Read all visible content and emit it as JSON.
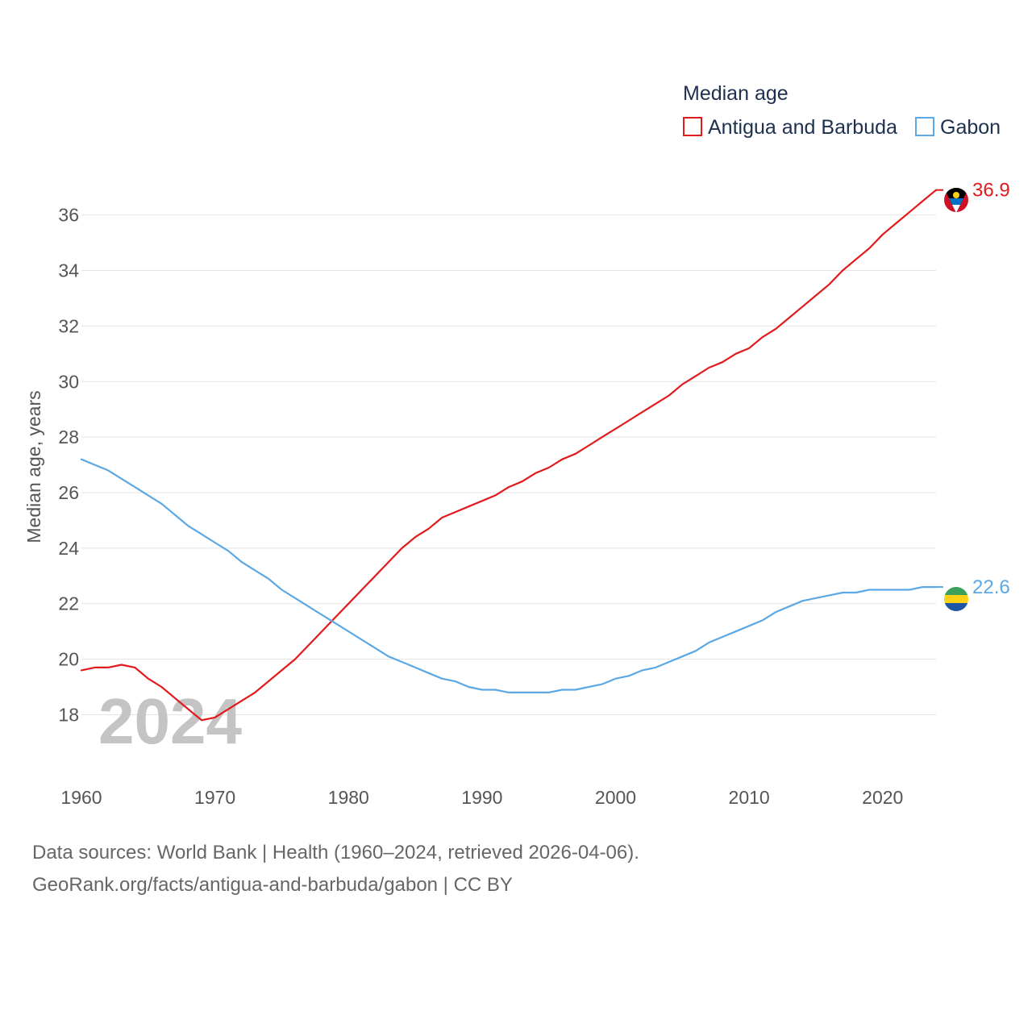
{
  "chart_data": {
    "type": "line",
    "title": "Median age",
    "ylabel": "Median age, years",
    "xlabel": "",
    "xlim": [
      1960,
      2024
    ],
    "ylim": [
      16.3,
      37.5
    ],
    "grid": true,
    "legend_position": "top-right",
    "year_watermark": "2024",
    "x_ticks": [
      1960,
      1970,
      1980,
      1990,
      2000,
      2010,
      2020
    ],
    "y_ticks": [
      18,
      20,
      22,
      24,
      26,
      28,
      30,
      32,
      34,
      36
    ],
    "x": [
      1960,
      1961,
      1962,
      1963,
      1964,
      1965,
      1966,
      1967,
      1968,
      1969,
      1970,
      1971,
      1972,
      1973,
      1974,
      1975,
      1976,
      1977,
      1978,
      1979,
      1980,
      1981,
      1982,
      1983,
      1984,
      1985,
      1986,
      1987,
      1988,
      1989,
      1990,
      1991,
      1992,
      1993,
      1994,
      1995,
      1996,
      1997,
      1998,
      1999,
      2000,
      2001,
      2002,
      2003,
      2004,
      2005,
      2006,
      2007,
      2008,
      2009,
      2010,
      2011,
      2012,
      2013,
      2014,
      2015,
      2016,
      2017,
      2018,
      2019,
      2020,
      2021,
      2022,
      2023,
      2024
    ],
    "series": [
      {
        "name": "Antigua and Barbuda",
        "color": "#e31a1c",
        "end_label": "36.9",
        "flag": "antigua-and-barbuda",
        "values": [
          19.6,
          19.7,
          19.7,
          19.8,
          19.7,
          19.3,
          19.0,
          18.6,
          18.2,
          17.8,
          17.9,
          18.2,
          18.5,
          18.8,
          19.2,
          19.6,
          20.0,
          20.5,
          21.0,
          21.5,
          22.0,
          22.5,
          23.0,
          23.5,
          24.0,
          24.4,
          24.7,
          25.1,
          25.3,
          25.5,
          25.7,
          25.9,
          26.2,
          26.4,
          26.7,
          26.9,
          27.2,
          27.4,
          27.7,
          28.0,
          28.3,
          28.6,
          28.9,
          29.2,
          29.5,
          29.9,
          30.2,
          30.5,
          30.7,
          31.0,
          31.2,
          31.6,
          31.9,
          32.3,
          32.7,
          33.1,
          33.5,
          34.0,
          34.4,
          34.8,
          35.3,
          35.7,
          36.1,
          36.5,
          36.9
        ]
      },
      {
        "name": "Gabon",
        "color": "#5ba8e5",
        "end_label": "22.6",
        "flag": "gabon",
        "values": [
          27.2,
          27.0,
          26.8,
          26.5,
          26.2,
          25.9,
          25.6,
          25.2,
          24.8,
          24.5,
          24.2,
          23.9,
          23.5,
          23.2,
          22.9,
          22.5,
          22.2,
          21.9,
          21.6,
          21.3,
          21.0,
          20.7,
          20.4,
          20.1,
          19.9,
          19.7,
          19.5,
          19.3,
          19.2,
          19.0,
          18.9,
          18.9,
          18.8,
          18.8,
          18.8,
          18.8,
          18.9,
          18.9,
          19.0,
          19.1,
          19.3,
          19.4,
          19.6,
          19.7,
          19.9,
          20.1,
          20.3,
          20.6,
          20.8,
          21.0,
          21.2,
          21.4,
          21.7,
          21.9,
          22.1,
          22.2,
          22.3,
          22.4,
          22.4,
          22.5,
          22.5,
          22.5,
          22.5,
          22.6,
          22.6
        ]
      }
    ]
  },
  "footer": {
    "source_line_1": "Data sources: World Bank | Health (1960–2024, retrieved 2026-04-06).",
    "source_line_2": "GeoRank.org/facts/antigua-and-barbuda/gabon | CC BY"
  }
}
